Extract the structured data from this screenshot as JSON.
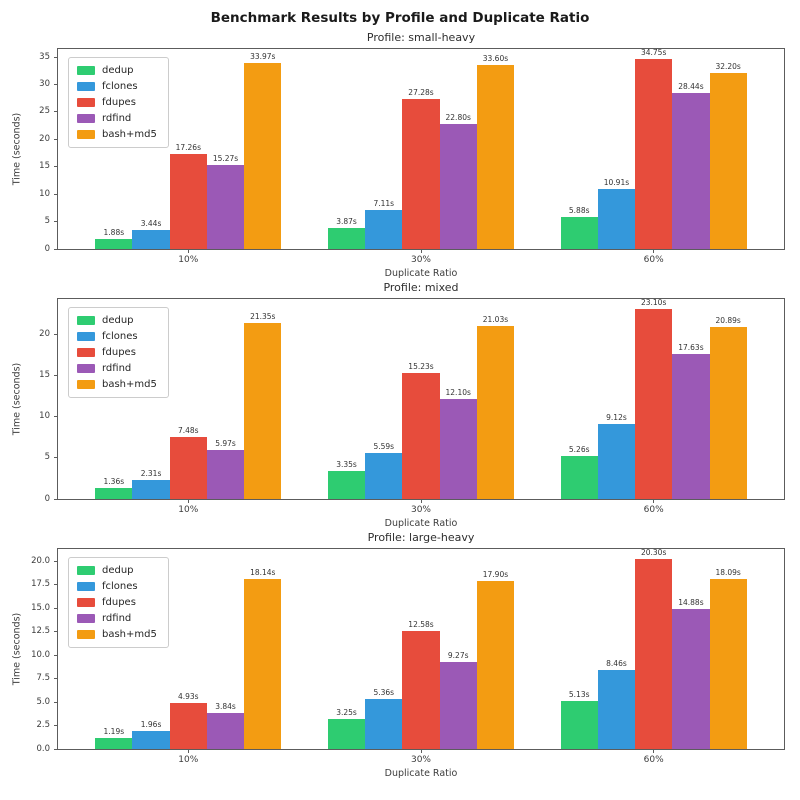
{
  "figure": {
    "title": "Benchmark Results by Profile and Duplicate Ratio"
  },
  "palette": {
    "dedup": "#2ecc71",
    "fclones": "#3498db",
    "fdupes": "#e74c3c",
    "rdfind": "#9b59b6",
    "bash_md5": "#f39c12"
  },
  "chart_data": [
    {
      "type": "bar",
      "title": "Profile: small-heavy",
      "xlabel": "Duplicate Ratio",
      "ylabel": "Time (seconds)",
      "categories": [
        "10%",
        "30%",
        "60%"
      ],
      "ytick_labels": [
        "0",
        "5",
        "10",
        "15",
        "20",
        "25",
        "30",
        "35"
      ],
      "ylim": [
        0,
        36.49
      ],
      "grid": false,
      "legend_position": "upper-left",
      "value_label_suffix": "s",
      "series": [
        {
          "name": "dedup",
          "color": "#2ecc71",
          "values": [
            1.88,
            3.87,
            5.88
          ]
        },
        {
          "name": "fclones",
          "color": "#3498db",
          "values": [
            3.44,
            7.11,
            10.91
          ]
        },
        {
          "name": "fdupes",
          "color": "#e74c3c",
          "values": [
            17.26,
            27.28,
            34.75
          ]
        },
        {
          "name": "rdfind",
          "color": "#9b59b6",
          "values": [
            15.27,
            22.8,
            28.44
          ]
        },
        {
          "name": "bash+md5",
          "color": "#f39c12",
          "values": [
            33.97,
            33.6,
            32.2
          ]
        }
      ]
    },
    {
      "type": "bar",
      "title": "Profile: mixed",
      "xlabel": "Duplicate Ratio",
      "ylabel": "Time (seconds)",
      "categories": [
        "10%",
        "30%",
        "60%"
      ],
      "ytick_labels": [
        "0",
        "5",
        "10",
        "15",
        "20"
      ],
      "ylim": [
        0,
        24.26
      ],
      "grid": false,
      "legend_position": "upper-left",
      "value_label_suffix": "s",
      "series": [
        {
          "name": "dedup",
          "color": "#2ecc71",
          "values": [
            1.36,
            3.35,
            5.26
          ]
        },
        {
          "name": "fclones",
          "color": "#3498db",
          "values": [
            2.31,
            5.59,
            9.12
          ]
        },
        {
          "name": "fdupes",
          "color": "#e74c3c",
          "values": [
            7.48,
            15.23,
            23.1
          ]
        },
        {
          "name": "rdfind",
          "color": "#9b59b6",
          "values": [
            5.97,
            12.1,
            17.63
          ]
        },
        {
          "name": "bash+md5",
          "color": "#f39c12",
          "values": [
            21.35,
            21.03,
            20.89
          ]
        }
      ]
    },
    {
      "type": "bar",
      "title": "Profile: large-heavy",
      "xlabel": "Duplicate Ratio",
      "ylabel": "Time (seconds)",
      "categories": [
        "10%",
        "30%",
        "60%"
      ],
      "ytick_labels": [
        "0.0",
        "2.5",
        "5.0",
        "7.5",
        "10.0",
        "12.5",
        "15.0",
        "17.5",
        "20.0"
      ],
      "ylim": [
        0,
        21.32
      ],
      "grid": false,
      "legend_position": "upper-left",
      "value_label_suffix": "s",
      "series": [
        {
          "name": "dedup",
          "color": "#2ecc71",
          "values": [
            1.19,
            3.25,
            5.13
          ]
        },
        {
          "name": "fclones",
          "color": "#3498db",
          "values": [
            1.96,
            5.36,
            8.46
          ]
        },
        {
          "name": "fdupes",
          "color": "#e74c3c",
          "values": [
            4.93,
            12.58,
            20.3
          ]
        },
        {
          "name": "rdfind",
          "color": "#9b59b6",
          "values": [
            3.84,
            9.27,
            14.88
          ]
        },
        {
          "name": "bash+md5",
          "color": "#f39c12",
          "values": [
            18.14,
            17.9,
            18.09
          ]
        }
      ]
    }
  ]
}
